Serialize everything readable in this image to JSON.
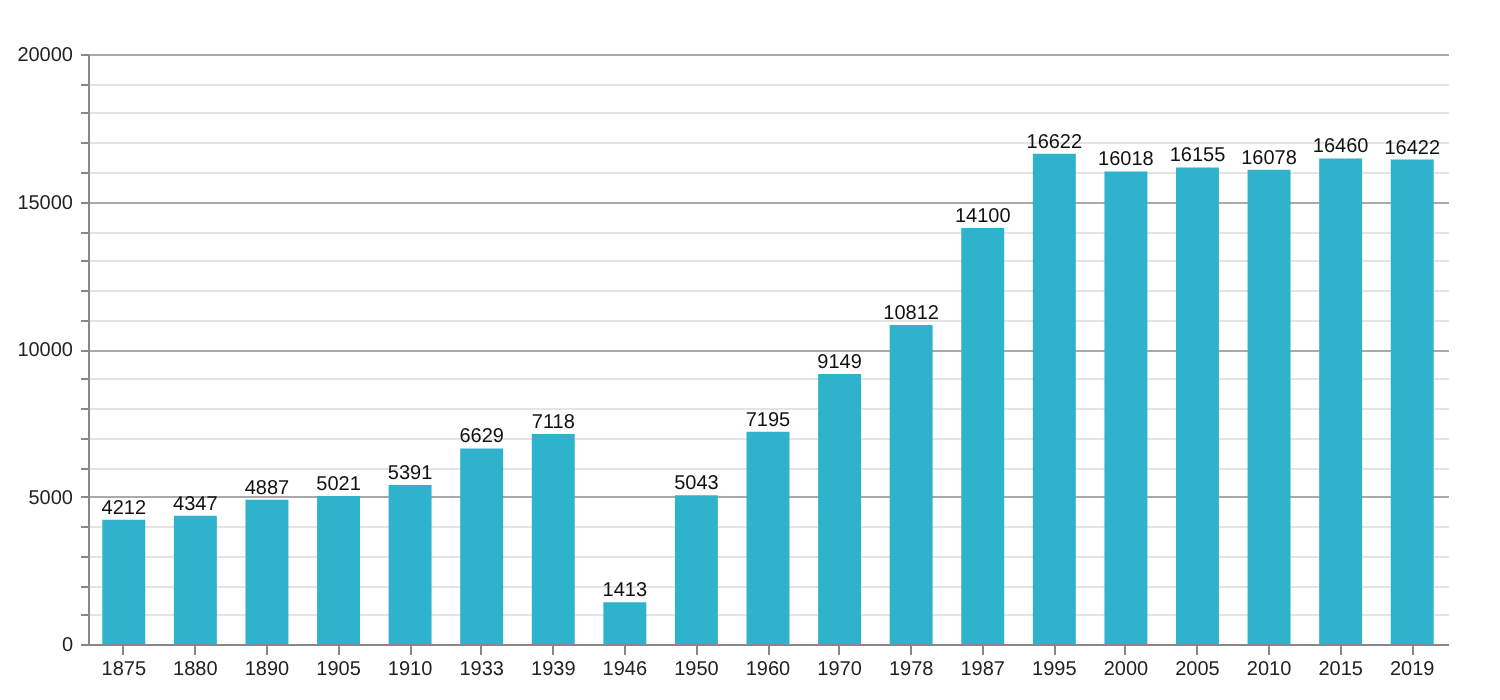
{
  "chart_data": {
    "type": "bar",
    "categories": [
      "1875",
      "1880",
      "1890",
      "1905",
      "1910",
      "1933",
      "1939",
      "1946",
      "1950",
      "1960",
      "1970",
      "1978",
      "1987",
      "1995",
      "2000",
      "2005",
      "2010",
      "2015",
      "2019"
    ],
    "values": [
      4212,
      4347,
      4887,
      5021,
      5391,
      6629,
      7118,
      1413,
      5043,
      7195,
      9149,
      10812,
      14100,
      16622,
      16018,
      16155,
      16078,
      16460,
      16422
    ],
    "color": "#2fb3cc",
    "ylim": [
      0,
      20000
    ],
    "yticks": [
      0,
      {
        "value": 1000,
        "label": null
      },
      {
        "value": 2000,
        "label": null
      },
      {
        "value": 3000,
        "label": null
      },
      {
        "value": 4000,
        "label": null
      },
      5000,
      {
        "value": 6000,
        "label": null
      },
      {
        "value": 7000,
        "label": null
      },
      {
        "value": 8000,
        "label": null
      },
      {
        "value": 9000,
        "label": null
      },
      10000,
      {
        "value": 11000,
        "label": null
      },
      {
        "value": 12000,
        "label": null
      },
      {
        "value": 13000,
        "label": null
      },
      {
        "value": 14000,
        "label": null
      },
      15000,
      {
        "value": 16000,
        "label": null
      },
      {
        "value": 17000,
        "label": null
      },
      {
        "value": 18000,
        "label": null
      },
      {
        "value": 19000,
        "label": null
      },
      20000
    ],
    "grid": true,
    "data_labels": true
  }
}
